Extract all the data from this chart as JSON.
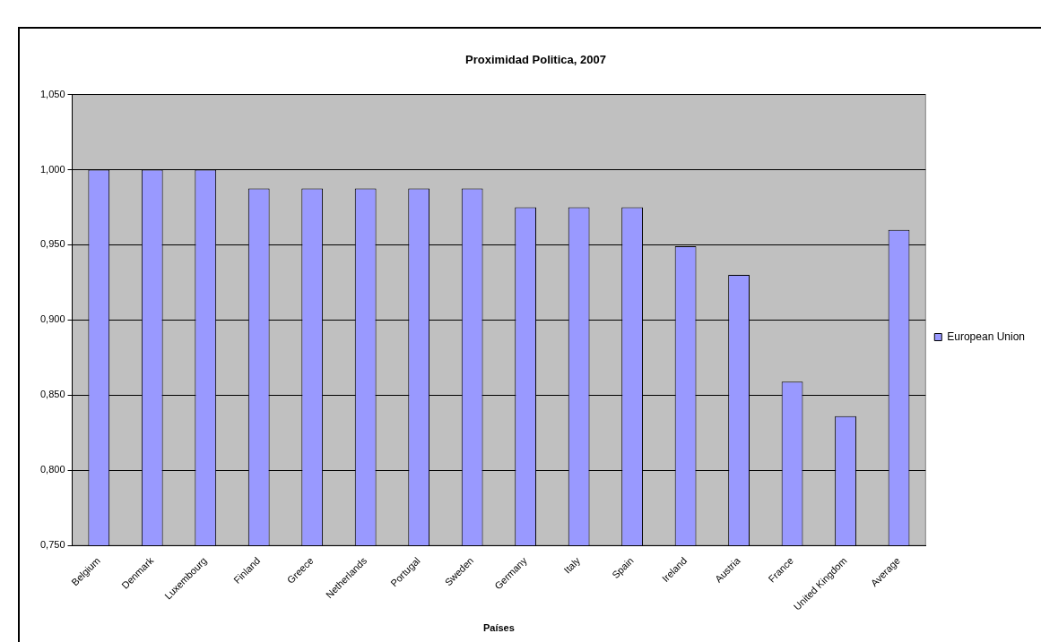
{
  "chart_data": {
    "type": "bar",
    "title": "Proximidad Politica, 2007",
    "xlabel": "Países",
    "categories": [
      "Belgium",
      "Denmark",
      "Luxembourg",
      "Finland",
      "Greece",
      "Netherlands",
      "Portugal",
      "Sweden",
      "Germany",
      "Italy",
      "Spain",
      "Ireland",
      "Austria",
      "France",
      "United Kingdom",
      "Average"
    ],
    "series": [
      {
        "name": "European Union",
        "color": "#9999ff",
        "values": [
          1.0,
          1.0,
          1.0,
          0.9875,
          0.9875,
          0.9875,
          0.9875,
          0.9875,
          0.975,
          0.975,
          0.975,
          0.949,
          0.93,
          0.859,
          0.836,
          0.96
        ]
      }
    ],
    "ylim": [
      0.75,
      1.05
    ],
    "yticks": [
      {
        "value": 0.75,
        "label": "0,750"
      },
      {
        "value": 0.8,
        "label": "0,800"
      },
      {
        "value": 0.85,
        "label": "0,850"
      },
      {
        "value": 0.9,
        "label": "0,900"
      },
      {
        "value": 0.95,
        "label": "0,950"
      },
      {
        "value": 1.0,
        "label": "1,000"
      },
      {
        "value": 1.05,
        "label": "1,050"
      }
    ],
    "grid": "y",
    "legend": "right"
  }
}
